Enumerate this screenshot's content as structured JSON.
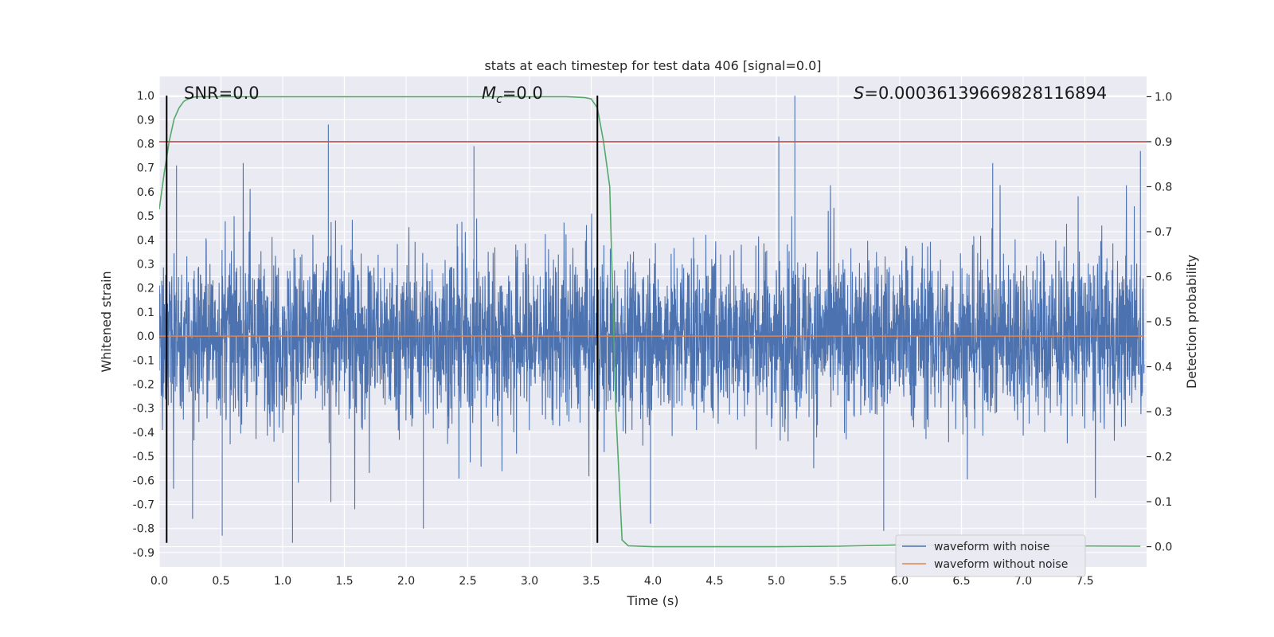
{
  "chart_data": {
    "type": "line",
    "title": "stats at each timestep for test data 406 [signal=0.0]",
    "xlabel": "Time (s)",
    "ylabel": "Whitened strain",
    "y2label": "Detection probability",
    "xlim": [
      0.0,
      8.0
    ],
    "ylim": [
      -0.96,
      1.08
    ],
    "y2lim": [
      -0.045,
      1.045
    ],
    "x_ticks": [
      0.0,
      0.5,
      1.0,
      1.5,
      2.0,
      2.5,
      3.0,
      3.5,
      4.0,
      4.5,
      5.0,
      5.5,
      6.0,
      6.5,
      7.0,
      7.5
    ],
    "y_ticks": [
      1.0,
      0.9,
      0.8,
      0.7,
      0.6,
      0.5,
      0.4,
      0.3,
      0.2,
      0.1,
      0.0,
      -0.1,
      -0.2,
      -0.3,
      -0.4,
      -0.5,
      -0.6,
      -0.7,
      -0.8,
      -0.9
    ],
    "y2_ticks": [
      1.0,
      0.9,
      0.8,
      0.7,
      0.6,
      0.5,
      0.4,
      0.3,
      0.2,
      0.1,
      0.0
    ],
    "grid": true,
    "legend_placement": "lower-right",
    "annotations": {
      "snr": "SNR=0.0",
      "mc_symbol": "M",
      "mc_sub": "c",
      "mc_value": "=0.0",
      "s_symbol": "S",
      "s_value": "=0.00036139669828116894"
    },
    "series": [
      {
        "name": "waveform with noise",
        "color": "#4c72b0",
        "axis": "left",
        "kind": "dense noise, approx. range -0.86 to 1.0",
        "peaks": [
          {
            "x": 1.37,
            "y": 0.88
          },
          {
            "x": 5.15,
            "y": 1.0
          },
          {
            "x": 5.02,
            "y": 0.83
          },
          {
            "x": 7.95,
            "y": 0.77
          },
          {
            "x": 0.14,
            "y": 0.71
          },
          {
            "x": 2.55,
            "y": 0.79
          }
        ],
        "troughs": [
          {
            "x": 1.08,
            "y": -0.86
          },
          {
            "x": 0.51,
            "y": -0.83
          },
          {
            "x": 5.87,
            "y": -0.81
          },
          {
            "x": 3.98,
            "y": -0.78
          },
          {
            "x": 0.27,
            "y": -0.76
          },
          {
            "x": 2.14,
            "y": -0.8
          }
        ]
      },
      {
        "name": "waveform without noise",
        "color": "#dd8452",
        "axis": "left",
        "x": [
          0.0,
          8.0
        ],
        "y": [
          0.0,
          0.0
        ]
      },
      {
        "name": "",
        "color": "#55a868",
        "axis": "right",
        "x": [
          0.0,
          0.04,
          0.08,
          0.12,
          0.16,
          0.2,
          0.25,
          0.3,
          0.4,
          0.6,
          1.0,
          2.0,
          3.0,
          3.3,
          3.45,
          3.5,
          3.55,
          3.6,
          3.65,
          3.7,
          3.75,
          3.8,
          4.0,
          5.0,
          5.5,
          6.0,
          7.0,
          7.95
        ],
        "y": [
          0.75,
          0.83,
          0.9,
          0.95,
          0.975,
          0.99,
          0.997,
          1.0,
          1.0,
          1.0,
          1.0,
          1.0,
          1.0,
          1.0,
          0.998,
          0.995,
          0.975,
          0.9,
          0.8,
          0.3,
          0.015,
          0.002,
          0.0,
          0.0,
          0.001,
          0.004,
          0.002,
          0.001
        ]
      }
    ],
    "reference_lines": [
      {
        "orientation": "horizontal",
        "axis": "right",
        "y": 0.9,
        "color": "#c44e52"
      },
      {
        "orientation": "vertical",
        "x": 0.06,
        "y_from": -0.86,
        "y_to": 1.0,
        "color": "#000000"
      },
      {
        "orientation": "vertical",
        "x": 3.55,
        "y_from": -0.86,
        "y_to": 1.0,
        "color": "#000000"
      }
    ],
    "colors": {
      "plot_background": "#eaeaf2",
      "grid": "#ffffff"
    }
  }
}
